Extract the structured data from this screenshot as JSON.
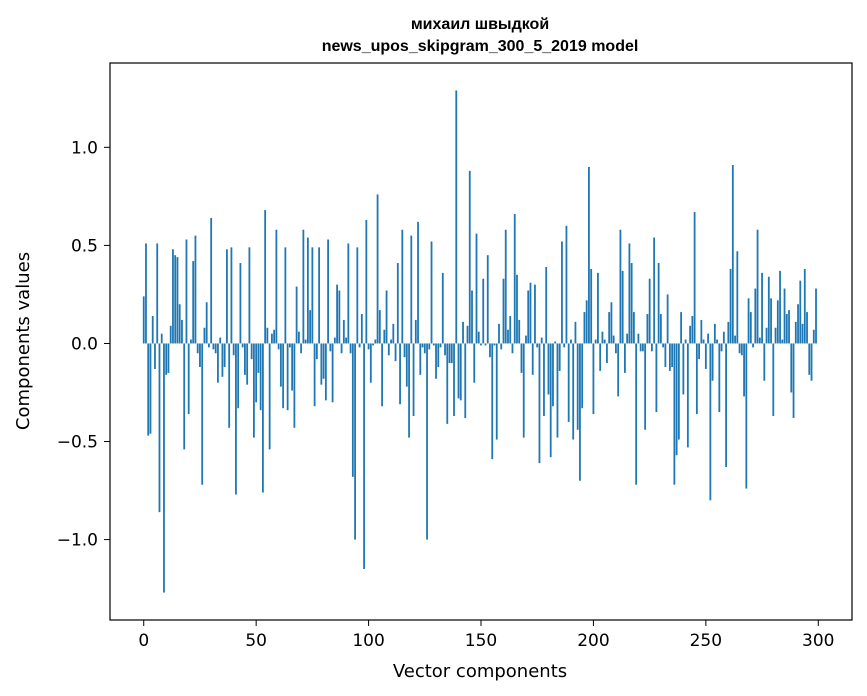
{
  "chart_data": {
    "type": "bar",
    "title_lines": [
      "михаил швыдкой",
      "news_upos_skipgram_300_5_2019 model"
    ],
    "xlabel": "Vector components",
    "ylabel": "Components values",
    "xlim": [
      -15,
      315
    ],
    "ylim": [
      -1.41,
      1.43
    ],
    "xticks": [
      0,
      50,
      100,
      150,
      200,
      250,
      300
    ],
    "xtick_labels": [
      "0",
      "50",
      "100",
      "150",
      "200",
      "250",
      "300"
    ],
    "yticks": [
      -1.0,
      -0.5,
      0.0,
      0.5,
      1.0
    ],
    "ytick_labels": [
      "−1.0",
      "−0.5",
      "0.0",
      "0.5",
      "1.0"
    ],
    "grid": false,
    "bar_color": "#1f77b4",
    "values": [
      0.24,
      0.51,
      -0.47,
      -0.46,
      0.14,
      -0.13,
      0.51,
      -0.86,
      0.05,
      -1.27,
      -0.16,
      -0.15,
      0.09,
      0.48,
      0.45,
      0.44,
      0.2,
      0.12,
      -0.54,
      0.53,
      -0.36,
      0.02,
      0.42,
      0.55,
      -0.05,
      -0.12,
      -0.72,
      0.08,
      0.21,
      -0.02,
      0.64,
      -0.03,
      -0.05,
      -0.2,
      0.03,
      -0.17,
      -0.12,
      0.48,
      -0.43,
      0.49,
      -0.06,
      -0.77,
      -0.33,
      0.41,
      -0.02,
      -0.16,
      -0.21,
      0.49,
      -0.08,
      -0.48,
      -0.3,
      -0.15,
      -0.34,
      -0.76,
      0.68,
      0.08,
      -0.54,
      0.05,
      0.07,
      0.58,
      -0.03,
      -0.22,
      -0.33,
      0.49,
      -0.34,
      -0.02,
      -0.24,
      -0.43,
      0.29,
      0.06,
      -0.05,
      0.58,
      0.02,
      0.54,
      0.17,
      0.49,
      -0.32,
      -0.08,
      0.49,
      -0.21,
      -0.18,
      -0.29,
      0.53,
      -0.04,
      -0.3,
      0.03,
      0.3,
      0.27,
      -0.05,
      0.12,
      0.03,
      0.51,
      -0.05,
      -0.68,
      -1.0,
      0.49,
      -0.02,
      0.15,
      -1.15,
      0.63,
      -0.03,
      -0.2,
      -0.01,
      0.02,
      0.76,
      0.17,
      -0.32,
      0.07,
      0.27,
      -0.06,
      0.02,
      0.1,
      -0.09,
      0.41,
      -0.31,
      0.58,
      -0.07,
      -0.22,
      -0.48,
      0.55,
      -0.37,
      0.12,
      0.62,
      -0.16,
      -0.02,
      -0.05,
      -1.0,
      -0.03,
      0.52,
      -0.01,
      -0.18,
      -0.12,
      -0.02,
      0.36,
      -0.06,
      -0.41,
      -0.1,
      -0.1,
      -0.37,
      1.29,
      -0.28,
      -0.29,
      0.11,
      -0.38,
      0.09,
      0.88,
      0.27,
      -0.2,
      0.56,
      0.06,
      -0.01,
      0.33,
      -0.01,
      0.45,
      -0.07,
      -0.59,
      -0.01,
      -0.49,
      0.1,
      -0.03,
      0.33,
      0.58,
      0.07,
      0.14,
      -0.05,
      0.66,
      0.35,
      0.12,
      -0.15,
      -0.48,
      0.04,
      0.27,
      0.31,
      -0.16,
      0.3,
      -0.02,
      -0.61,
      0.03,
      -0.37,
      0.39,
      -0.26,
      -0.58,
      -0.32,
      0.01,
      -0.48,
      -0.14,
      0.52,
      -0.02,
      0.6,
      -0.4,
      0.02,
      -0.49,
      0.11,
      -0.44,
      -0.7,
      -0.33,
      0.16,
      0.22,
      0.9,
      0.38,
      -0.36,
      0.02,
      0.36,
      -0.14,
      0.06,
      0.02,
      -0.1,
      0.16,
      0.21,
      0.04,
      -0.05,
      -0.27,
      0.58,
      0.37,
      -0.15,
      0.05,
      0.51,
      0.41,
      0.16,
      -0.72,
      0.05,
      -0.04,
      -0.04,
      -0.44,
      0.15,
      0.33,
      -0.04,
      0.54,
      -0.35,
      0.41,
      0.15,
      -0.02,
      -0.12,
      0.25,
      -0.14,
      -0.12,
      -0.72,
      -0.57,
      -0.49,
      0.16,
      -0.26,
      0.02,
      -0.53,
      0.09,
      0.14,
      0.67,
      -0.36,
      -0.08,
      0.12,
      0.02,
      -0.13,
      0.05,
      -0.8,
      -0.19,
      0.1,
      0.02,
      -0.35,
      -0.04,
      0.06,
      -0.63,
      0.11,
      0.38,
      0.91,
      0.04,
      0.47,
      -0.05,
      -0.06,
      -0.27,
      -0.74,
      0.23,
      0.16,
      -0.02,
      0.28,
      0.58,
      0.03,
      0.36,
      -0.19,
      0.08,
      0.34,
      0.23,
      -0.37,
      0.08,
      0.22,
      0.37,
      0.02,
      0.28,
      0.15,
      0.17,
      -0.25,
      -0.38,
      0.11,
      0.2,
      0.32,
      0.1,
      0.38,
      0.16,
      -0.16,
      -0.19,
      0.07,
      0.28
    ]
  }
}
